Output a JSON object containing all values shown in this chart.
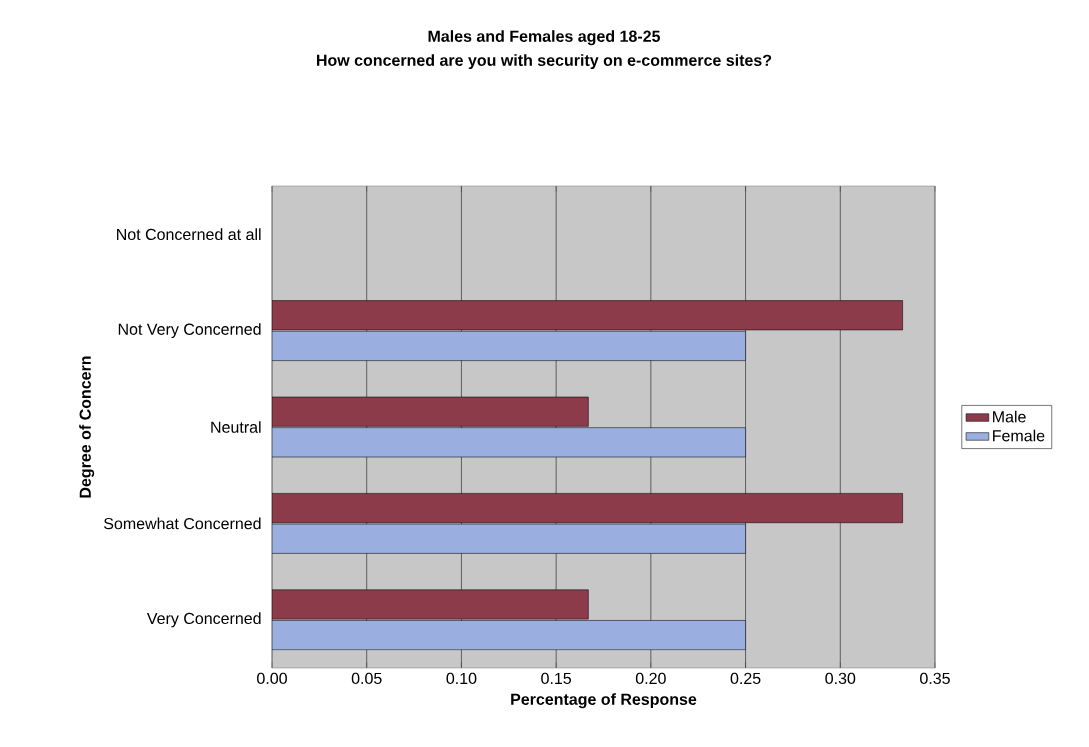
{
  "chart_data": {
    "type": "bar",
    "orientation": "horizontal",
    "title": "Males and Females aged 18-25",
    "subtitle": "How concerned are you with security on e-commerce sites?",
    "xlabel": "Percentage of Response",
    "ylabel": "Degree of Concern",
    "categories": [
      "Not Concerned at all",
      "Not Very Concerned",
      "Neutral",
      "Somewhat Concerned",
      "Very Concerned"
    ],
    "series": [
      {
        "name": "Male",
        "color": "#8c3b4b",
        "values": [
          0,
          0.333,
          0.167,
          0.333,
          0.167
        ]
      },
      {
        "name": "Female",
        "color": "#9aaee0",
        "values": [
          0,
          0.25,
          0.25,
          0.25,
          0.25
        ]
      }
    ],
    "xlim": [
      0,
      0.35
    ],
    "xticks": [
      {
        "value": 0,
        "label": "0.00"
      },
      {
        "value": 0.05,
        "label": "0.05"
      },
      {
        "value": 0.1,
        "label": "0.10"
      },
      {
        "value": 0.15,
        "label": "0.15"
      },
      {
        "value": 0.2,
        "label": "0.20"
      },
      {
        "value": 0.25,
        "label": "0.25"
      },
      {
        "value": 0.3,
        "label": "0.30"
      },
      {
        "value": 0.35,
        "label": "0.35"
      }
    ],
    "grid": "x",
    "legend": "right"
  }
}
